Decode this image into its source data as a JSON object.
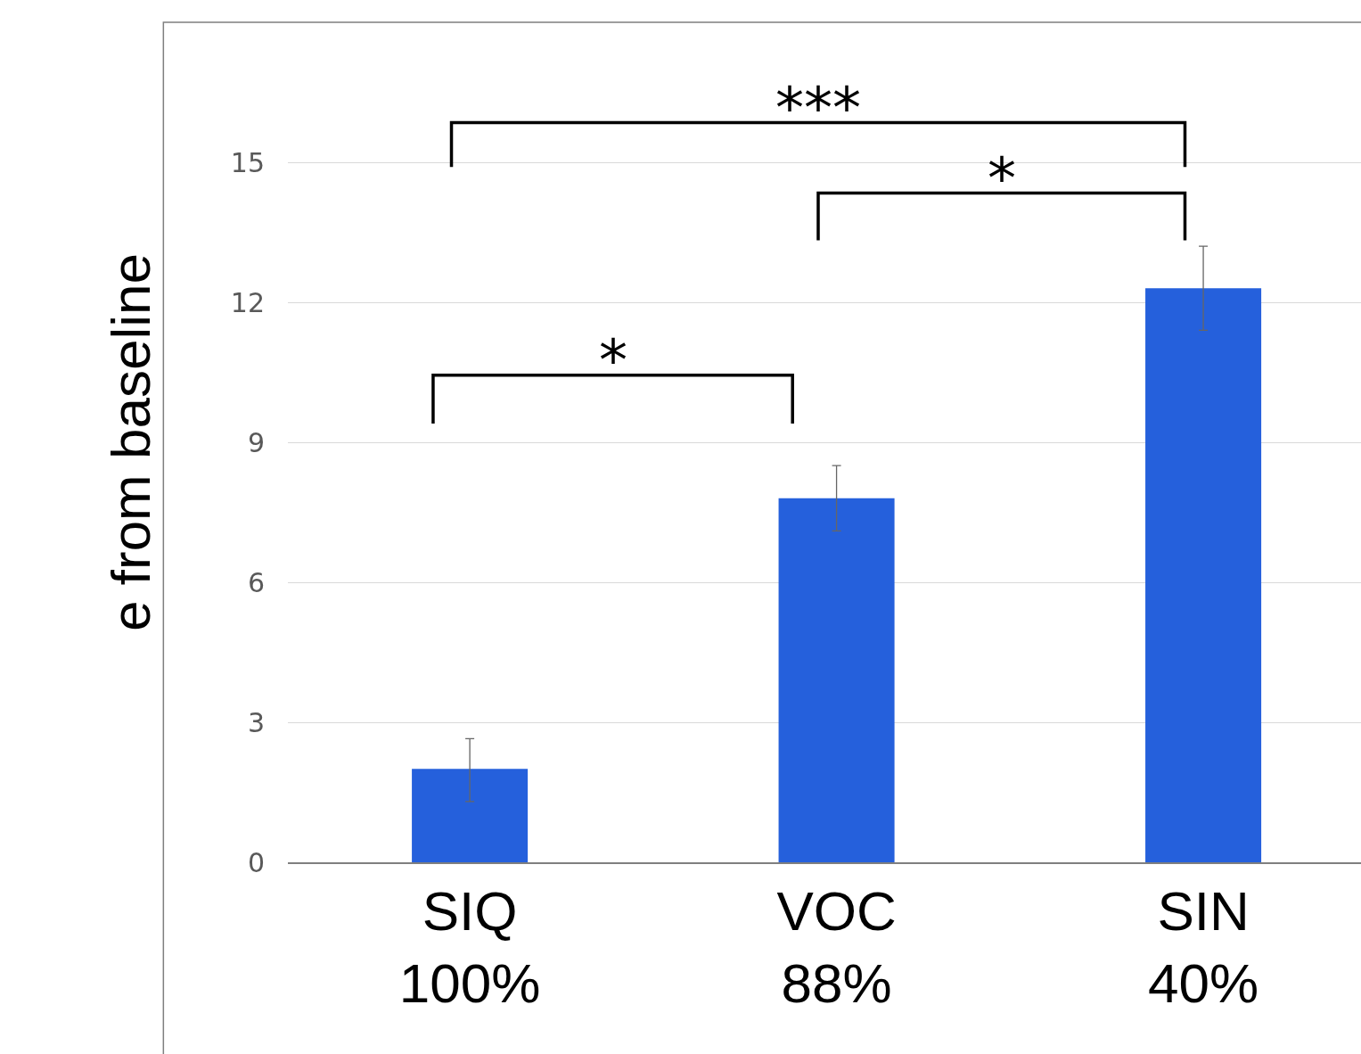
{
  "chart_data": {
    "type": "bar",
    "ylabel": "e from baseline",
    "categories": [
      "SIQ\n100%",
      "VOC\n88%",
      "SIN\n40%"
    ],
    "values": [
      2.0,
      7.8,
      12.3
    ],
    "errors": [
      [
        1.3,
        2.65
      ],
      [
        7.1,
        8.5
      ],
      [
        11.4,
        13.2
      ]
    ],
    "color": "#2560dc",
    "ylim": [
      0,
      18
    ],
    "yticks": [
      0,
      3,
      6,
      9,
      12,
      15
    ],
    "grid": "y",
    "annotations": [
      "***",
      "*",
      "*"
    ]
  }
}
